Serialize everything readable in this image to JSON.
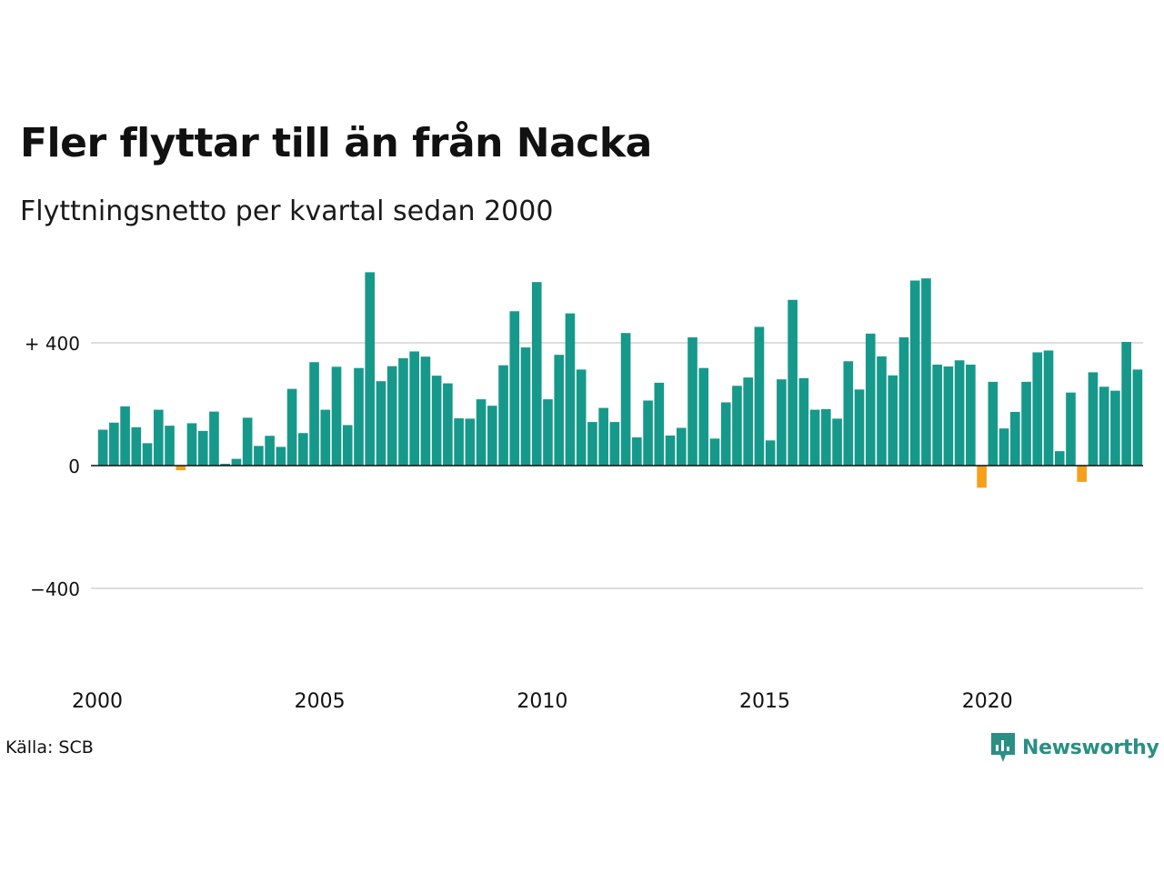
{
  "title": "Fler flyttar till än från Nacka",
  "subtitle": "Flyttningsnetto per kvartal sedan 2000",
  "source": "Källa: SCB",
  "brand": {
    "name": "Newsworthy",
    "icon": "newsworthy-logo-icon",
    "color": "#2a8f85"
  },
  "colors": {
    "positive": "#16998a",
    "negative": "#f5a01a",
    "grid": "#dddddd",
    "axis": "#111111"
  },
  "chart_data": {
    "type": "bar",
    "title": "Fler flyttar till än från Nacka",
    "subtitle": "Flyttningsnetto per kvartal sedan 2000",
    "xlabel": "",
    "ylabel": "",
    "ylim": [
      -700,
      640
    ],
    "yticks": [
      400,
      0,
      -400
    ],
    "ytick_labels": [
      "+ 400",
      "0",
      "−400"
    ],
    "x_tick_labels": [
      "2000",
      "2005",
      "2010",
      "2015",
      "2020"
    ],
    "x_tick_years": [
      2000,
      2005,
      2010,
      2015,
      2020
    ],
    "first_period": "2000 Q1",
    "grid": true,
    "legend": "none",
    "values": [
      117,
      140,
      193,
      125,
      73,
      182,
      130,
      -15,
      138,
      113,
      176,
      6,
      22,
      156,
      64,
      97,
      61,
      250,
      106,
      337,
      182,
      322,
      132,
      318,
      630,
      275,
      324,
      350,
      372,
      355,
      293,
      268,
      154,
      153,
      216,
      195,
      327,
      503,
      385,
      598,
      216,
      361,
      496,
      313,
      142,
      188,
      142,
      432,
      92,
      212,
      270,
      98,
      123,
      418,
      318,
      88,
      206,
      260,
      287,
      452,
      82,
      281,
      540,
      285,
      182,
      184,
      153,
      340,
      248,
      430,
      356,
      294,
      418,
      603,
      610,
      329,
      323,
      343,
      329,
      -72,
      273,
      121,
      175,
      273,
      369,
      375,
      47,
      238,
      -53,
      304,
      257,
      244,
      403,
      313
    ]
  }
}
